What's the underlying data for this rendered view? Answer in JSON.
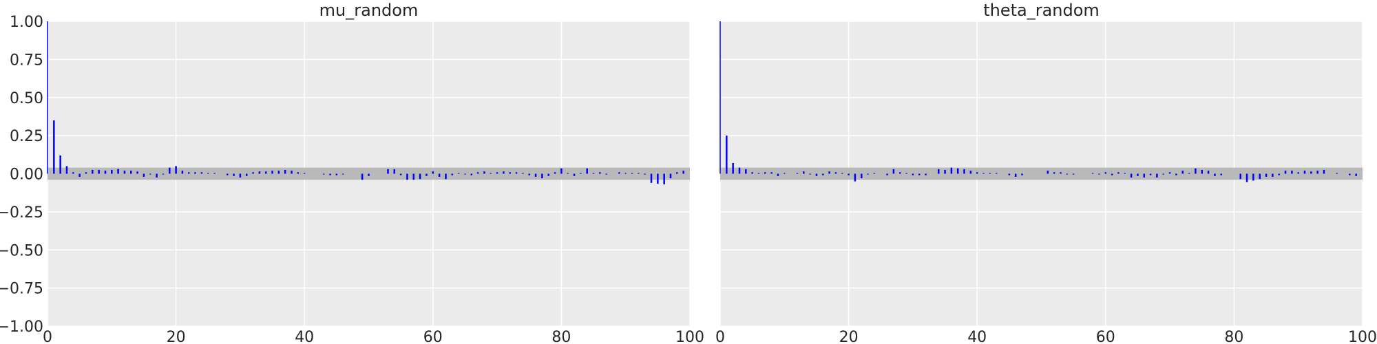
{
  "chart_data": [
    {
      "type": "bar",
      "title": "mu_random",
      "xlabel": "",
      "ylabel": "",
      "xlim": [
        0,
        100
      ],
      "ylim": [
        -1.0,
        1.0
      ],
      "x_ticks": [
        "0",
        "20",
        "40",
        "60",
        "80",
        "100"
      ],
      "y_ticks": [
        "1.00",
        "0.75",
        "0.50",
        "0.25",
        "0.00",
        "−0.25",
        "−0.50",
        "−0.75",
        "−1.00"
      ],
      "grid": true,
      "confidence_band": [
        -0.04,
        0.04
      ],
      "lags": [
        0,
        1,
        2,
        3,
        4,
        5,
        6,
        7,
        8,
        9,
        10,
        11,
        12,
        13,
        14,
        15,
        16,
        17,
        18,
        19,
        20,
        21,
        22,
        23,
        24,
        25,
        26,
        27,
        28,
        29,
        30,
        31,
        32,
        33,
        34,
        35,
        36,
        37,
        38,
        39,
        40,
        41,
        42,
        43,
        44,
        45,
        46,
        47,
        48,
        49,
        50,
        51,
        52,
        53,
        54,
        55,
        56,
        57,
        58,
        59,
        60,
        61,
        62,
        63,
        64,
        65,
        66,
        67,
        68,
        69,
        70,
        71,
        72,
        73,
        74,
        75,
        76,
        77,
        78,
        79,
        80,
        81,
        82,
        83,
        84,
        85,
        86,
        87,
        88,
        89,
        90,
        91,
        92,
        93,
        94,
        95,
        96,
        97,
        98,
        99
      ],
      "values": [
        1.0,
        0.35,
        0.12,
        0.05,
        0.01,
        -0.02,
        0.01,
        0.025,
        0.025,
        0.02,
        0.025,
        0.03,
        0.02,
        0.02,
        0.015,
        -0.02,
        -0.005,
        -0.025,
        -0.005,
        0.04,
        0.05,
        0.02,
        0.01,
        0.01,
        0.01,
        0.005,
        0.005,
        0.0,
        -0.01,
        -0.015,
        -0.025,
        -0.015,
        0.01,
        0.015,
        0.015,
        0.02,
        0.02,
        0.025,
        0.02,
        0.01,
        0.005,
        0.0,
        0.0,
        -0.005,
        -0.01,
        -0.01,
        -0.005,
        0.0,
        0.0,
        -0.04,
        -0.015,
        0.0,
        0.0,
        0.03,
        0.03,
        -0.01,
        -0.04,
        -0.04,
        -0.035,
        -0.015,
        0.015,
        -0.02,
        -0.035,
        -0.01,
        0.005,
        -0.005,
        -0.01,
        0.01,
        0.015,
        0.005,
        0.01,
        0.015,
        0.01,
        0.01,
        0.005,
        -0.01,
        -0.02,
        -0.03,
        -0.015,
        0.01,
        0.035,
        0.005,
        -0.015,
        0.005,
        0.035,
        0.005,
        0.01,
        -0.005,
        0.0,
        0.01,
        0.005,
        0.005,
        0.005,
        -0.005,
        -0.06,
        -0.065,
        -0.07,
        -0.03,
        0.01,
        0.02
      ]
    },
    {
      "type": "bar",
      "title": "theta_random",
      "xlabel": "",
      "ylabel": "",
      "xlim": [
        0,
        100
      ],
      "ylim": [
        -1.0,
        1.0
      ],
      "x_ticks": [
        "0",
        "20",
        "40",
        "60",
        "80",
        "100"
      ],
      "grid": true,
      "confidence_band": [
        -0.04,
        0.04
      ],
      "lags": [
        0,
        1,
        2,
        3,
        4,
        5,
        6,
        7,
        8,
        9,
        10,
        11,
        12,
        13,
        14,
        15,
        16,
        17,
        18,
        19,
        20,
        21,
        22,
        23,
        24,
        25,
        26,
        27,
        28,
        29,
        30,
        31,
        32,
        33,
        34,
        35,
        36,
        37,
        38,
        39,
        40,
        41,
        42,
        43,
        44,
        45,
        46,
        47,
        48,
        49,
        50,
        51,
        52,
        53,
        54,
        55,
        56,
        57,
        58,
        59,
        60,
        61,
        62,
        63,
        64,
        65,
        66,
        67,
        68,
        69,
        70,
        71,
        72,
        73,
        74,
        75,
        76,
        77,
        78,
        79,
        80,
        81,
        82,
        83,
        84,
        85,
        86,
        87,
        88,
        89,
        90,
        91,
        92,
        93,
        94,
        95,
        96,
        97,
        98,
        99
      ],
      "values": [
        1.0,
        0.25,
        0.07,
        0.04,
        0.03,
        0.01,
        0.005,
        0.01,
        0.01,
        -0.015,
        0.005,
        0.0,
        0.005,
        0.015,
        -0.005,
        -0.015,
        -0.01,
        0.015,
        0.01,
        0.005,
        -0.01,
        -0.05,
        -0.03,
        -0.005,
        0.005,
        0.0,
        -0.01,
        0.03,
        0.01,
        0.005,
        -0.01,
        -0.01,
        -0.01,
        0.0,
        0.03,
        0.025,
        0.04,
        0.035,
        0.03,
        0.02,
        0.01,
        0.005,
        0.005,
        0.005,
        0.0,
        -0.01,
        -0.02,
        -0.01,
        0.0,
        0.0,
        0.0,
        0.02,
        0.01,
        0.01,
        -0.005,
        -0.005,
        0.0,
        0.0,
        0.005,
        -0.005,
        0.01,
        -0.01,
        0.01,
        0.005,
        -0.025,
        -0.015,
        -0.025,
        -0.01,
        -0.025,
        -0.005,
        0.01,
        -0.01,
        0.02,
        0.005,
        0.035,
        0.025,
        0.02,
        -0.015,
        -0.01,
        0.0,
        0.0,
        -0.035,
        -0.055,
        -0.045,
        -0.035,
        -0.02,
        -0.02,
        -0.01,
        0.02,
        0.02,
        0.01,
        0.02,
        0.015,
        0.02,
        0.025,
        0.0,
        0.005,
        0.0,
        -0.01,
        -0.015
      ]
    }
  ],
  "style": {
    "plot_background": "#ebebeb",
    "grid_color": "#ffffff",
    "band_color": "#b9b9b9",
    "bar_color": "#0000ff",
    "text_color": "#262626"
  }
}
